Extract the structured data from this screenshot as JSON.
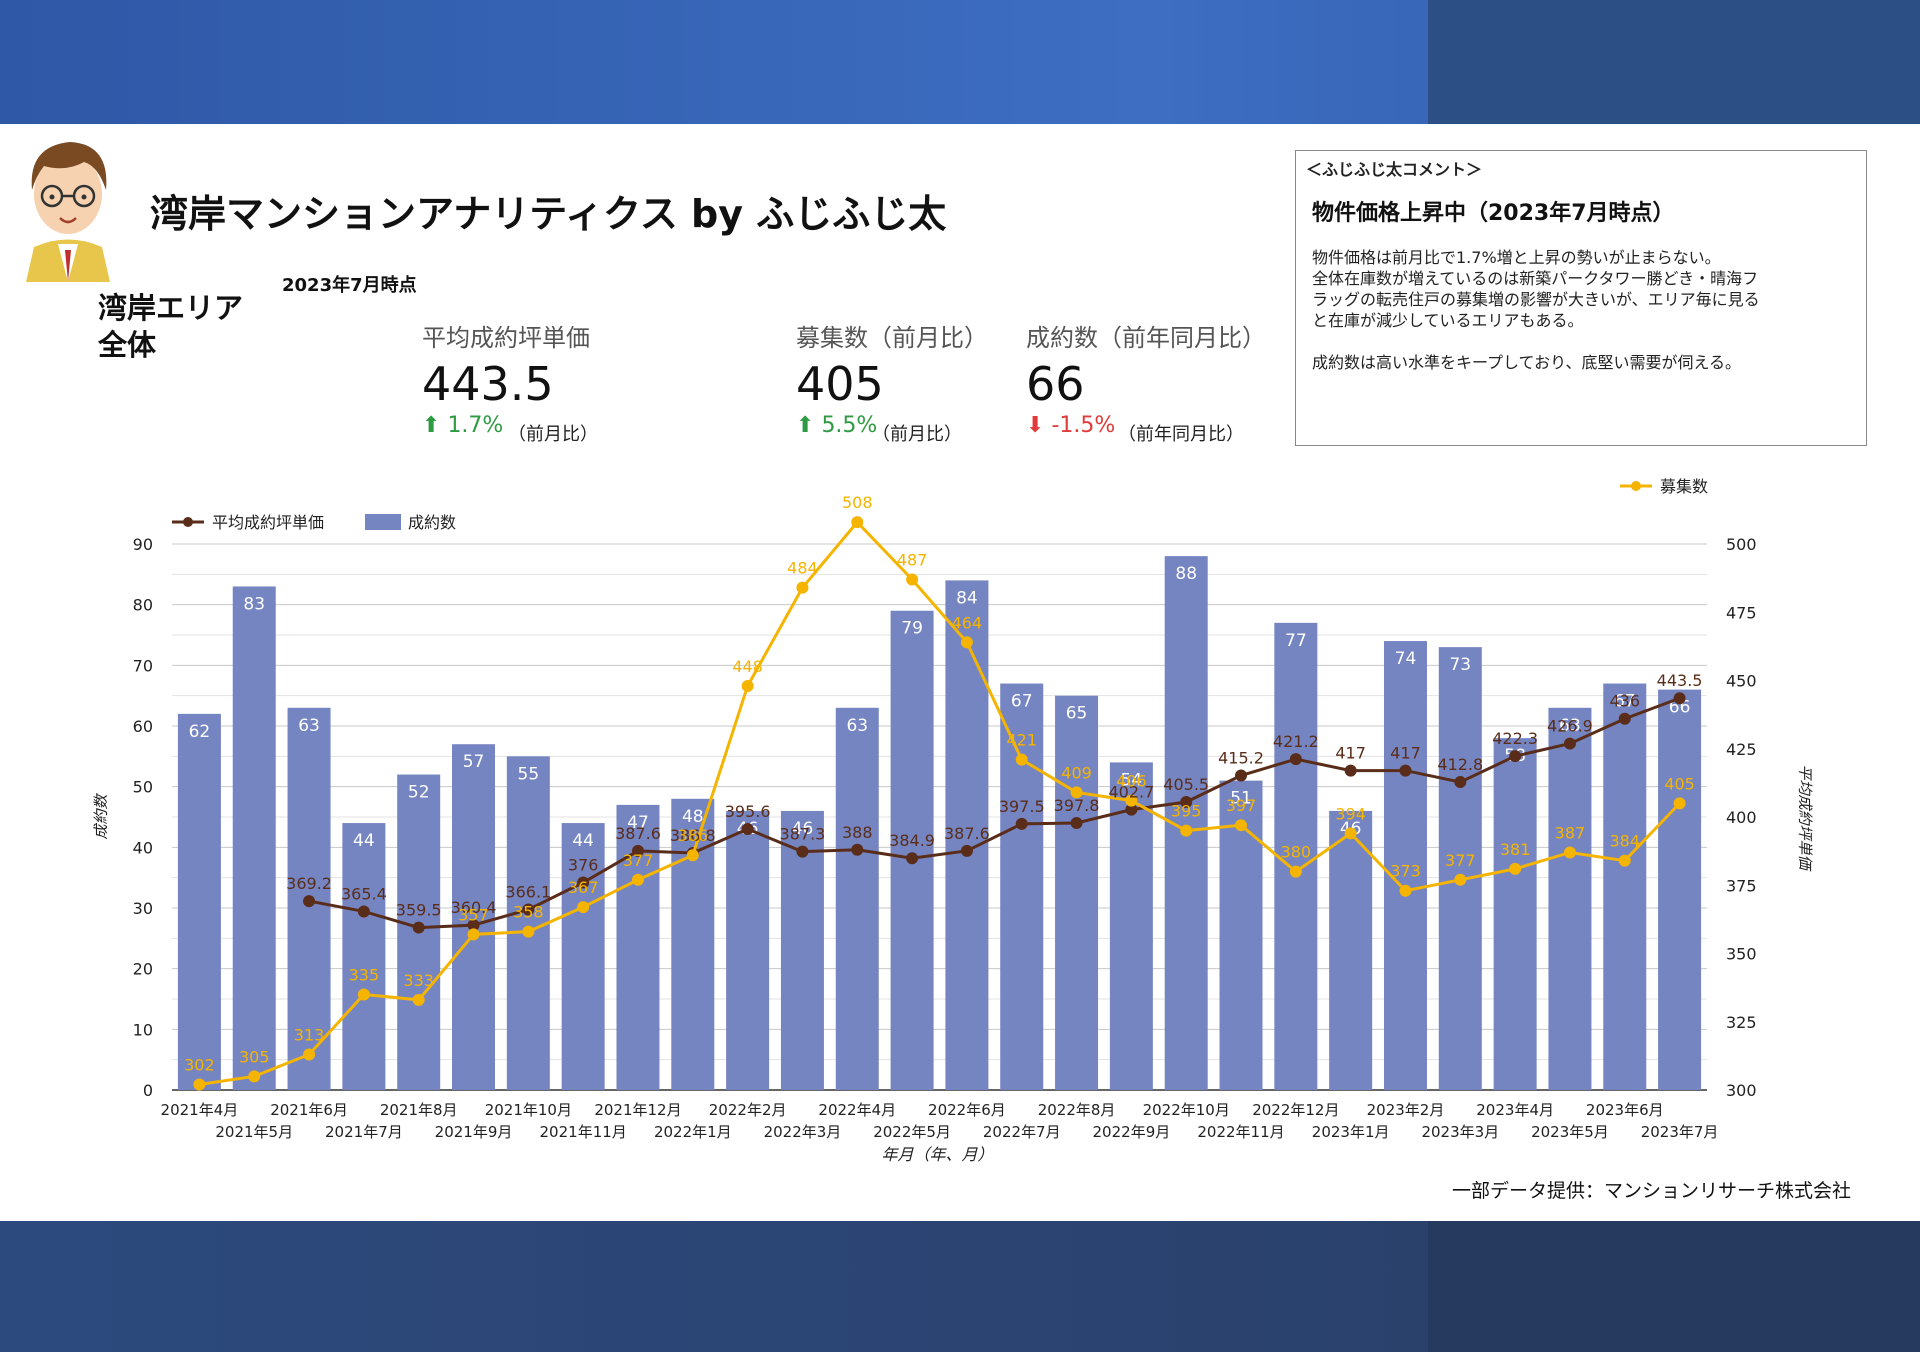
{
  "header": {
    "title": "湾岸マンションアナリティクス by ふじふじ太",
    "as_of": "2023年7月時点",
    "area": [
      "湾岸エリア",
      "全体"
    ]
  },
  "kpis": [
    {
      "label": "平均成約坪単価",
      "value": "443.5",
      "change": "1.7%",
      "direction": "up",
      "note": "（前月比）"
    },
    {
      "label": "募集数（前月比）",
      "value": "405",
      "change": "5.5%",
      "direction": "up",
      "note": "（前月比）"
    },
    {
      "label": "成約数（前年同月比）",
      "value": "66",
      "change": "-1.5%",
      "direction": "down",
      "note": "（前年同月比）"
    }
  ],
  "comment": {
    "heading": "＜ふじふじ太コメント＞",
    "title": "物件価格上昇中（2023年7月時点）",
    "body": [
      "物件価格は前月比で1.7%増と上昇の勢いが止まらない。",
      "全体在庫数が増えているのは新築パークタワー勝どき・晴海フ",
      "ラッグの転売住戸の募集増の影響が大きいが、エリア毎に見る",
      "と在庫が減少しているエリアもある。",
      "成約数は高い水準をキープしており、底堅い需要が伺える。"
    ]
  },
  "source": "一部データ提供：マンションリサーチ株式会社",
  "colors": {
    "bar": "#7585c2",
    "price_line": "#5a2d1a",
    "listing_line": "#f5b400",
    "up": "#2e9b43",
    "down": "#e03b3b"
  },
  "chart_data": {
    "type": "bar",
    "categories": [
      "2021年4月",
      "2021年5月",
      "2021年6月",
      "2021年7月",
      "2021年8月",
      "2021年9月",
      "2021年10月",
      "2021年11月",
      "2021年12月",
      "2022年1月",
      "2022年2月",
      "2022年3月",
      "2022年4月",
      "2022年5月",
      "2022年6月",
      "2022年7月",
      "2022年8月",
      "2022年9月",
      "2022年10月",
      "2022年11月",
      "2022年12月",
      "2023年1月",
      "2023年2月",
      "2023年3月",
      "2023年4月",
      "2023年5月",
      "2023年6月",
      "2023年7月"
    ],
    "xlabel": "年月（年、月）",
    "ylabel_left": "成約数",
    "ylabel_right": "平均成約坪単価",
    "ylim_left": [
      0,
      90
    ],
    "yticks_left": [
      0,
      10,
      20,
      30,
      40,
      50,
      60,
      70,
      80,
      90
    ],
    "ylim_right": [
      300,
      500
    ],
    "yticks_right": [
      300,
      325,
      350,
      375,
      400,
      425,
      450,
      475,
      500
    ],
    "grid": true,
    "legend_main": "top-left",
    "legend_listing": "top-right",
    "series": [
      {
        "name": "成約数",
        "type": "bar",
        "axis": "left",
        "values": [
          62,
          83,
          63,
          44,
          52,
          57,
          55,
          44,
          47,
          48,
          46,
          46,
          63,
          79,
          84,
          67,
          65,
          54,
          88,
          51,
          77,
          46,
          74,
          73,
          58,
          63,
          67,
          66
        ]
      },
      {
        "name": "平均成約坪単価",
        "type": "line",
        "axis": "right",
        "values": [
          null,
          null,
          369.2,
          365.4,
          359.5,
          360.4,
          366.1,
          376.0,
          387.6,
          386.8,
          395.6,
          387.3,
          388.0,
          384.9,
          387.6,
          397.5,
          397.8,
          402.7,
          405.5,
          415.2,
          421.2,
          417.0,
          417.0,
          412.8,
          422.3,
          426.9,
          436.0,
          443.5
        ],
        "labels": [
          "",
          "",
          "369.2",
          "365.4",
          "359.5",
          "360.4",
          "366.1",
          "376",
          "387.6",
          "386.8",
          "395.6",
          "387.3",
          "388",
          "384.9",
          "387.6",
          "397.5",
          "397.8",
          "402.7",
          "405.5",
          "415.2",
          "421.2",
          "417",
          "417",
          "412.8",
          "422.3",
          "426.9",
          "436",
          "443.5"
        ]
      },
      {
        "name": "募集数",
        "type": "line",
        "axis": "right",
        "values": [
          302,
          305,
          313,
          335,
          333,
          357,
          358,
          367,
          377,
          386,
          448,
          484,
          508,
          487,
          464,
          421,
          409,
          406,
          395,
          397,
          380,
          394,
          373,
          377,
          381,
          387,
          384,
          405
        ]
      }
    ]
  }
}
